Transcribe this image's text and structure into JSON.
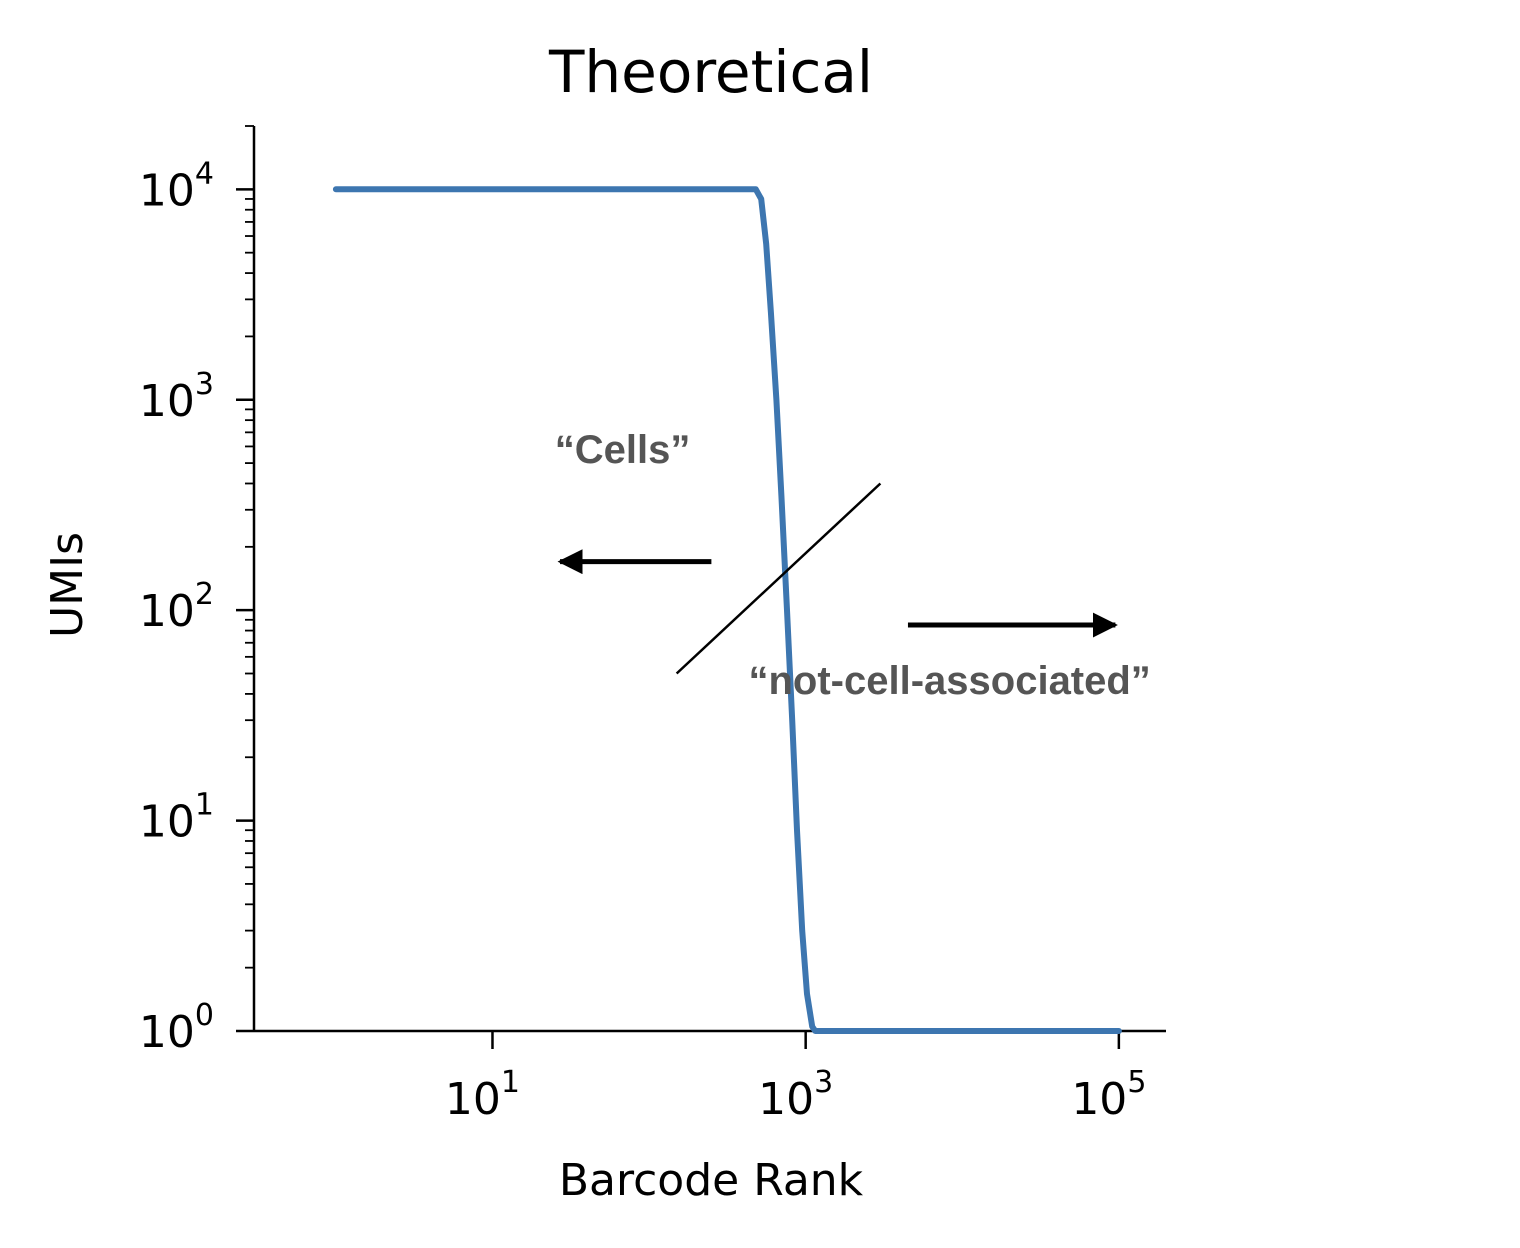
{
  "chart_data": {
    "type": "line",
    "title": "Theoretical",
    "xlabel": "Barcode Rank",
    "ylabel": "UMIs",
    "xscale": "log",
    "yscale": "log",
    "xlim": [
      0.3,
      200000
    ],
    "ylim": [
      1,
      20000
    ],
    "xticks": [
      {
        "value": 10,
        "label_base": "10",
        "label_exp": "1"
      },
      {
        "value": 1000,
        "label_base": "10",
        "label_exp": "3"
      },
      {
        "value": 100000,
        "label_base": "10",
        "label_exp": "5"
      }
    ],
    "yticks": [
      {
        "value": 1,
        "label_base": "10",
        "label_exp": "0"
      },
      {
        "value": 10,
        "label_base": "10",
        "label_exp": "1"
      },
      {
        "value": 100,
        "label_base": "10",
        "label_exp": "2"
      },
      {
        "value": 1000,
        "label_base": "10",
        "label_exp": "3"
      },
      {
        "value": 10000,
        "label_base": "10",
        "label_exp": "4"
      }
    ],
    "series": [
      {
        "color": "#3d76b0",
        "x": [
          1,
          100,
          400,
          480,
          520,
          560,
          600,
          650,
          700,
          760,
          820,
          880,
          950,
          1020,
          1100,
          1150,
          1300,
          10000,
          100000
        ],
        "y": [
          10000,
          10000,
          10000,
          10000,
          9000,
          5500,
          2600,
          1000,
          350,
          100,
          30,
          9,
          3,
          1.5,
          1.05,
          1,
          1,
          1,
          1
        ]
      }
    ],
    "annotations": [
      {
        "text": "“Cells”",
        "x": 25,
        "y": 500
      },
      {
        "text": "“not-cell-associated”",
        "x": 160000,
        "y": 40
      }
    ],
    "threshold_line": {
      "x": [
        150,
        3000
      ],
      "y": [
        50,
        400
      ]
    },
    "arrows": [
      {
        "direction": "left",
        "from_x": 250,
        "to_x": 27,
        "y": 170
      },
      {
        "direction": "right",
        "from_x": 4500,
        "to_x": 95000,
        "y": 85
      }
    ]
  }
}
